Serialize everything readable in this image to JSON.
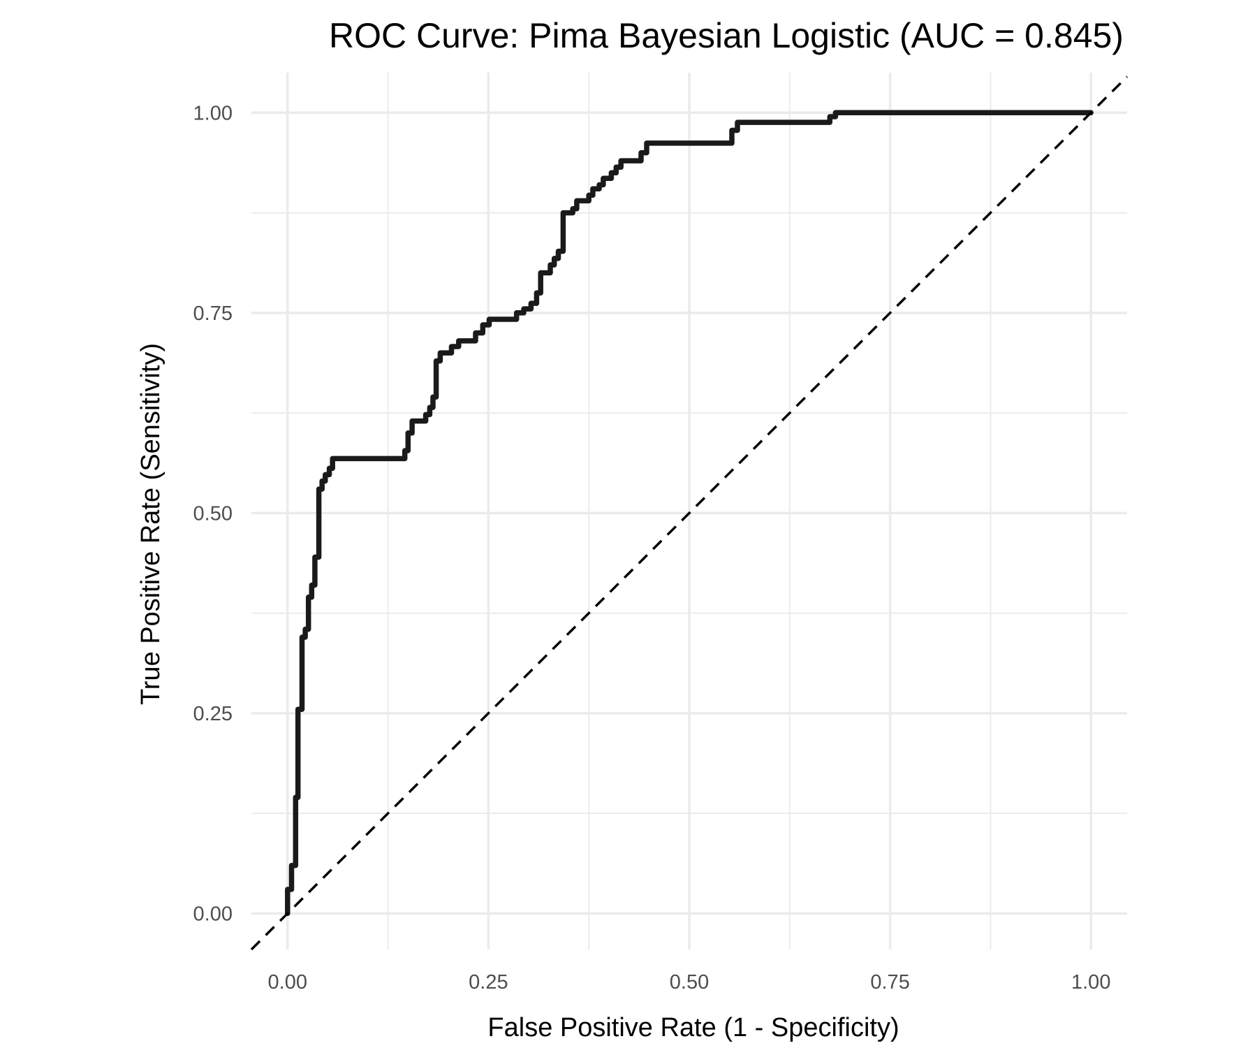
{
  "chart_data": {
    "type": "line",
    "title": "ROC Curve: Pima Bayesian Logistic (AUC = 0.845)",
    "xlabel": "False Positive Rate (1 - Specificity)",
    "ylabel": "True Positive Rate (Sensitivity)",
    "xlim": [
      -0.045,
      1.045
    ],
    "ylim": [
      -0.045,
      1.05
    ],
    "x_ticks": [
      0.0,
      0.25,
      0.5,
      0.75,
      1.0
    ],
    "y_ticks": [
      0.0,
      0.25,
      0.5,
      0.75,
      1.0
    ],
    "x_tick_labels": [
      "0.00",
      "0.25",
      "0.50",
      "0.75",
      "1.00"
    ],
    "y_tick_labels": [
      "0.00",
      "0.25",
      "0.50",
      "0.75",
      "1.00"
    ],
    "grid": true,
    "legend": "none",
    "series": [
      {
        "style": "solid",
        "color": "#1a1a1a",
        "x": [
          0.0,
          0.0,
          0.005,
          0.005,
          0.01,
          0.01,
          0.013,
          0.013,
          0.018,
          0.018,
          0.022,
          0.022,
          0.026,
          0.026,
          0.03,
          0.03,
          0.034,
          0.034,
          0.039,
          0.039,
          0.043,
          0.043,
          0.047,
          0.047,
          0.052,
          0.052,
          0.056,
          0.056,
          0.06,
          0.06,
          0.065,
          0.065,
          0.072,
          0.072,
          0.077,
          0.077,
          0.082,
          0.082,
          0.086,
          0.086,
          0.146,
          0.146,
          0.15,
          0.15,
          0.155,
          0.155,
          0.166,
          0.166,
          0.172,
          0.172,
          0.177,
          0.177,
          0.181,
          0.181,
          0.185,
          0.185,
          0.19,
          0.19,
          0.204,
          0.204,
          0.213,
          0.213,
          0.234,
          0.234,
          0.243,
          0.243,
          0.251,
          0.251,
          0.285,
          0.285,
          0.294,
          0.294,
          0.303,
          0.303,
          0.31,
          0.31,
          0.315,
          0.315,
          0.327,
          0.327,
          0.332,
          0.332,
          0.337,
          0.337,
          0.343,
          0.343,
          0.355,
          0.355,
          0.36,
          0.36,
          0.375,
          0.375,
          0.38,
          0.38,
          0.388,
          0.388,
          0.393,
          0.393,
          0.403,
          0.403,
          0.409,
          0.409,
          0.415,
          0.415,
          0.44,
          0.44,
          0.447,
          0.447,
          0.452,
          0.452,
          0.553,
          0.553,
          0.56,
          0.56,
          0.675,
          0.675,
          0.682,
          0.682,
          1.0
        ],
        "y": [
          0.0,
          0.03,
          0.03,
          0.06,
          0.06,
          0.145,
          0.145,
          0.255,
          0.255,
          0.345,
          0.345,
          0.355,
          0.355,
          0.395,
          0.395,
          0.41,
          0.41,
          0.445,
          0.445,
          0.53,
          0.53,
          0.54,
          0.54,
          0.548,
          0.548,
          0.556,
          0.556,
          0.568,
          0.568,
          0.568,
          0.568,
          0.568,
          0.568,
          0.568,
          0.568,
          0.568,
          0.568,
          0.568,
          0.568,
          0.568,
          0.568,
          0.578,
          0.578,
          0.6,
          0.6,
          0.615,
          0.615,
          0.615,
          0.615,
          0.623,
          0.623,
          0.632,
          0.632,
          0.645,
          0.645,
          0.69,
          0.69,
          0.7,
          0.7,
          0.708,
          0.708,
          0.715,
          0.715,
          0.725,
          0.725,
          0.735,
          0.735,
          0.742,
          0.742,
          0.75,
          0.75,
          0.755,
          0.755,
          0.762,
          0.762,
          0.775,
          0.775,
          0.8,
          0.8,
          0.81,
          0.81,
          0.818,
          0.818,
          0.827,
          0.827,
          0.875,
          0.875,
          0.88,
          0.88,
          0.89,
          0.89,
          0.897,
          0.897,
          0.905,
          0.905,
          0.91,
          0.91,
          0.918,
          0.918,
          0.925,
          0.925,
          0.932,
          0.932,
          0.94,
          0.94,
          0.95,
          0.95,
          0.962,
          0.962,
          0.962,
          0.962,
          0.978,
          0.978,
          0.988,
          0.988,
          0.995,
          0.995,
          1.0,
          1.0
        ]
      },
      {
        "style": "dashed",
        "color": "#000000",
        "x": [
          -0.045,
          1.045
        ],
        "y": [
          -0.045,
          1.045
        ]
      }
    ]
  }
}
